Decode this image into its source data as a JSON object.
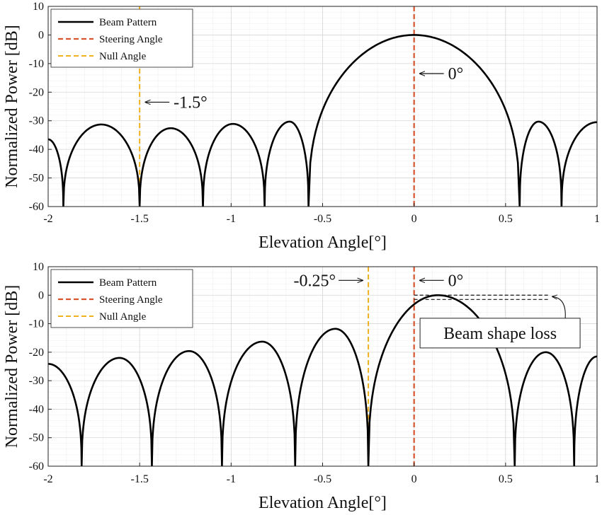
{
  "chart_data": [
    {
      "type": "line",
      "xlabel": "Elevation Angle[°]",
      "ylabel": "Normalized Power [dB]",
      "xlim": [
        -2,
        1
      ],
      "ylim": [
        -60,
        10
      ],
      "xticks": [
        "-2",
        "-1.5",
        "-1",
        "-0.5",
        "0",
        "0.5",
        "1"
      ],
      "yticks": [
        "10",
        "0",
        "-10",
        "-20",
        "-30",
        "-40",
        "-50",
        "-60"
      ],
      "grid": true,
      "legend_position": "top-left",
      "legend": [
        "Beam Pattern",
        "Steering Angle",
        "Null Angle"
      ],
      "colors": {
        "beam": "#000000",
        "steering": "#d9542c",
        "null": "#f0b020"
      },
      "steering_angle": 0,
      "null_angle": -1.5,
      "nulls": [
        -1.917,
        -1.5,
        -1.154,
        -0.817,
        -0.577,
        0.577,
        0.806
      ],
      "sidelobes": [
        [
          -2.0,
          -36.5
        ],
        [
          -1.71,
          -31.3
        ],
        [
          -1.33,
          -32.6
        ],
        [
          -0.99,
          -31.1
        ],
        [
          -0.68,
          -30.3
        ],
        [
          0.68,
          -30.3
        ],
        [
          1.0,
          -30.5
        ]
      ],
      "main_lobe_peak": [
        0,
        0
      ],
      "annotations": [
        {
          "text": "-1.5°",
          "x": -1.5,
          "y": -23.5,
          "arrow": "left"
        },
        {
          "text": "0°",
          "x": 0,
          "y": -13.5,
          "arrow": "left"
        }
      ]
    },
    {
      "type": "line",
      "xlabel": "Elevation Angle[°]",
      "ylabel": "Normalized Power [dB]",
      "xlim": [
        -2,
        1
      ],
      "ylim": [
        -60,
        10
      ],
      "xticks": [
        "-2",
        "-1.5",
        "-1",
        "-0.5",
        "0",
        "0.5",
        "1"
      ],
      "yticks": [
        "10",
        "0",
        "-10",
        "-20",
        "-30",
        "-40",
        "-50",
        "-60"
      ],
      "grid": true,
      "legend_position": "top-left",
      "legend": [
        "Beam Pattern",
        "Steering Angle",
        "Null Angle"
      ],
      "colors": {
        "beam": "#000000",
        "steering": "#d9542c",
        "null": "#f0b020"
      },
      "steering_angle": 0,
      "null_angle": -0.25,
      "nulls": [
        -1.817,
        -1.433,
        -1.05,
        -0.65,
        -0.25,
        0.55,
        0.875
      ],
      "sidelobes": [
        [
          -2.0,
          -24.1
        ],
        [
          -1.61,
          -22.0
        ],
        [
          -1.23,
          -19.6
        ],
        [
          -0.83,
          -16.3
        ],
        [
          -0.43,
          -11.8
        ],
        [
          0.13,
          0.0
        ],
        [
          0.72,
          -20.0
        ],
        [
          1.0,
          -21.5
        ]
      ],
      "main_lobe_peak": [
        0.13,
        0
      ],
      "value_at_steering": -1.5,
      "annotations": [
        {
          "text": "-0.25°",
          "x": -0.25,
          "y": 5.2,
          "arrow": "right"
        },
        {
          "text": "0°",
          "x": 0,
          "y": 5.2,
          "arrow": "left"
        },
        {
          "text": "Beam shape loss",
          "x": 0.47,
          "y": -13.3,
          "box": true
        }
      ]
    }
  ]
}
